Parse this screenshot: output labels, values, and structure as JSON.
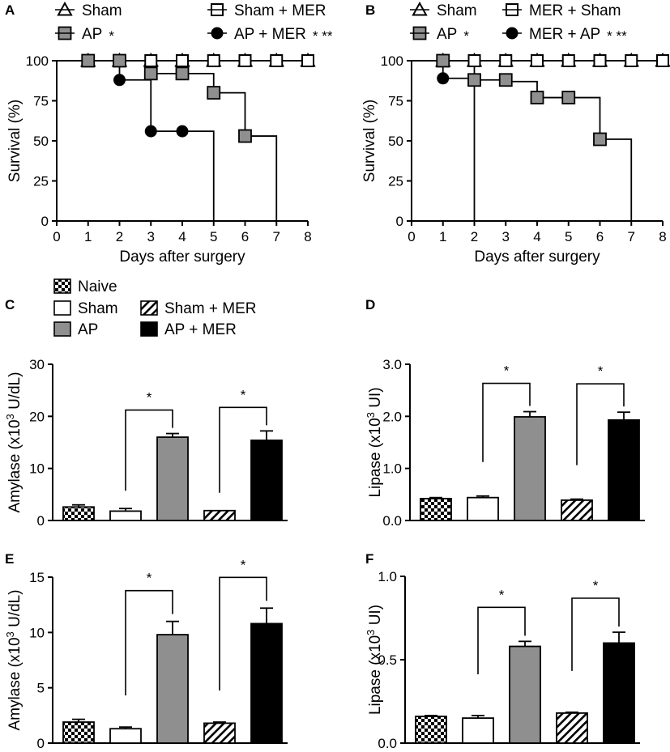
{
  "colors": {
    "ap_fill": "#8f8f8f",
    "black": "#000000",
    "white": "#ffffff"
  },
  "chart_data": [
    {
      "panel": "A",
      "type": "line",
      "step": true,
      "xlabel": "Days after surgery",
      "ylabel": "Survival (%)",
      "xlim": [
        0,
        8
      ],
      "ylim": [
        0,
        100
      ],
      "xticks": [
        0,
        1,
        2,
        3,
        4,
        5,
        6,
        7,
        8
      ],
      "yticks": [
        0,
        25,
        50,
        75,
        100
      ],
      "legend": [
        {
          "label": "Sham",
          "marker": "triangle-open",
          "sig": ""
        },
        {
          "label": "Sham + MER",
          "marker": "square-open",
          "sig": ""
        },
        {
          "label": "AP",
          "marker": "square-gray",
          "sig": "*"
        },
        {
          "label": "AP + MER",
          "marker": "circle-black",
          "sig": "* **"
        }
      ],
      "series": [
        {
          "name": "Sham",
          "marker": "triangle-open",
          "steps": [
            [
              0,
              100
            ],
            [
              8,
              100
            ]
          ],
          "markers": [
            [
              1,
              100
            ],
            [
              2,
              100
            ],
            [
              3,
              100
            ],
            [
              4,
              100
            ],
            [
              5,
              100
            ],
            [
              6,
              100
            ],
            [
              7,
              100
            ],
            [
              8,
              100
            ]
          ]
        },
        {
          "name": "Sham + MER",
          "marker": "square-open",
          "steps": [
            [
              0,
              100
            ],
            [
              8,
              100
            ]
          ],
          "markers": [
            [
              1,
              100
            ],
            [
              2,
              100
            ],
            [
              3,
              100
            ],
            [
              4,
              100
            ],
            [
              5,
              100
            ],
            [
              6,
              100
            ],
            [
              7,
              100
            ],
            [
              8,
              100
            ]
          ]
        },
        {
          "name": "AP",
          "marker": "square-gray",
          "steps": [
            [
              0,
              100
            ],
            [
              3,
              100
            ],
            [
              3,
              92
            ],
            [
              5,
              92
            ],
            [
              5,
              80
            ],
            [
              6,
              80
            ],
            [
              6,
              53
            ],
            [
              7,
              53
            ],
            [
              7,
              0
            ]
          ],
          "markers": [
            [
              1,
              100
            ],
            [
              2,
              100
            ],
            [
              3,
              92
            ],
            [
              4,
              92
            ],
            [
              5,
              80
            ],
            [
              6,
              53
            ]
          ]
        },
        {
          "name": "AP + MER",
          "marker": "circle-black",
          "steps": [
            [
              0,
              100
            ],
            [
              2,
              100
            ],
            [
              2,
              88
            ],
            [
              3,
              88
            ],
            [
              3,
              56
            ],
            [
              5,
              56
            ],
            [
              5,
              0
            ]
          ],
          "markers": [
            [
              2,
              88
            ],
            [
              3,
              56
            ],
            [
              4,
              56
            ]
          ]
        }
      ]
    },
    {
      "panel": "B",
      "type": "line",
      "step": true,
      "xlabel": "Days after surgery",
      "ylabel": "Survival (%)",
      "xlim": [
        0,
        8
      ],
      "ylim": [
        0,
        100
      ],
      "xticks": [
        0,
        1,
        2,
        3,
        4,
        5,
        6,
        7,
        8
      ],
      "yticks": [
        0,
        25,
        50,
        75,
        100
      ],
      "legend": [
        {
          "label": "Sham",
          "marker": "triangle-open",
          "sig": ""
        },
        {
          "label": "MER + Sham",
          "marker": "square-open",
          "sig": ""
        },
        {
          "label": "AP",
          "marker": "square-gray",
          "sig": "*"
        },
        {
          "label": "MER + AP",
          "marker": "circle-black",
          "sig": "* **"
        }
      ],
      "series": [
        {
          "name": "Sham",
          "marker": "triangle-open",
          "steps": [
            [
              0,
              100
            ],
            [
              8,
              100
            ]
          ],
          "markers": [
            [
              1,
              100
            ],
            [
              2,
              100
            ],
            [
              3,
              100
            ],
            [
              4,
              100
            ],
            [
              5,
              100
            ],
            [
              6,
              100
            ],
            [
              7,
              100
            ],
            [
              8,
              100
            ]
          ]
        },
        {
          "name": "MER + Sham",
          "marker": "square-open",
          "steps": [
            [
              0,
              100
            ],
            [
              8,
              100
            ]
          ],
          "markers": [
            [
              1,
              100
            ],
            [
              2,
              100
            ],
            [
              3,
              100
            ],
            [
              4,
              100
            ],
            [
              5,
              100
            ],
            [
              6,
              100
            ],
            [
              7,
              100
            ],
            [
              8,
              100
            ]
          ]
        },
        {
          "name": "AP",
          "marker": "square-gray",
          "steps": [
            [
              0,
              100
            ],
            [
              2,
              100
            ],
            [
              2,
              88
            ],
            [
              3,
              88
            ],
            [
              3,
              87
            ],
            [
              4,
              87
            ],
            [
              4,
              77
            ],
            [
              5,
              77
            ],
            [
              6,
              77
            ],
            [
              6,
              51
            ],
            [
              7,
              51
            ],
            [
              7,
              0
            ]
          ],
          "markers": [
            [
              1,
              100
            ],
            [
              2,
              88
            ],
            [
              3,
              88
            ],
            [
              4,
              77
            ],
            [
              5,
              77
            ],
            [
              6,
              51
            ]
          ]
        },
        {
          "name": "MER + AP",
          "marker": "circle-black",
          "steps": [
            [
              0,
              100
            ],
            [
              1,
              100
            ],
            [
              1,
              89
            ],
            [
              2,
              89
            ],
            [
              2,
              0
            ]
          ],
          "markers": [
            [
              1,
              89
            ]
          ]
        }
      ]
    },
    {
      "panel": "C",
      "type": "bar",
      "ylabel": "Amylase (x10³ U/dL)",
      "ylabel_parts": [
        "Amylase (x10",
        "3",
        " U/dL)"
      ],
      "ylim": [
        0,
        30
      ],
      "yticks": [
        "0",
        "10",
        "20",
        "30"
      ],
      "legend": [
        {
          "label": "Naive",
          "pattern": "checker"
        },
        {
          "label": "Sham",
          "pattern": "white"
        },
        {
          "label": "AP",
          "pattern": "gray"
        },
        {
          "label": "Sham + MER",
          "pattern": "hatch"
        },
        {
          "label": "AP + MER",
          "pattern": "black"
        }
      ],
      "bars": [
        {
          "group": "Naive",
          "value": 2.6,
          "error": 0.4
        },
        {
          "group": "Sham",
          "value": 1.8,
          "error": 0.5
        },
        {
          "group": "AP",
          "value": 16.0,
          "error": 0.7
        },
        {
          "group": "Sham + MER",
          "value": 1.9,
          "error": 0.0
        },
        {
          "group": "AP + MER",
          "value": 15.4,
          "error": 1.8
        }
      ],
      "comparisons": [
        {
          "from": "Sham",
          "to": "AP",
          "label": "*"
        },
        {
          "from": "Sham + MER",
          "to": "AP + MER",
          "label": "*"
        }
      ]
    },
    {
      "panel": "D",
      "type": "bar",
      "ylabel": "Lipase (x10³ UI)",
      "ylabel_parts": [
        "Lipase (x10",
        "3",
        " UI)"
      ],
      "ylim": [
        0,
        3.0
      ],
      "yticks": [
        "0.0",
        "1.0",
        "2.0",
        "3.0"
      ],
      "bars": [
        {
          "group": "Naive",
          "value": 0.42,
          "error": 0.02
        },
        {
          "group": "Sham",
          "value": 0.44,
          "error": 0.03
        },
        {
          "group": "AP",
          "value": 1.99,
          "error": 0.1
        },
        {
          "group": "Sham + MER",
          "value": 0.39,
          "error": 0.02
        },
        {
          "group": "AP + MER",
          "value": 1.93,
          "error": 0.15
        }
      ],
      "comparisons": [
        {
          "from": "Sham",
          "to": "AP",
          "label": "*"
        },
        {
          "from": "Sham + MER",
          "to": "AP + MER",
          "label": "*"
        }
      ]
    },
    {
      "panel": "E",
      "type": "bar",
      "ylabel": "Amylase (x10³ U/dL)",
      "ylabel_parts": [
        "Amylase (x10",
        "3",
        " U/dL)"
      ],
      "ylim": [
        0,
        15
      ],
      "yticks": [
        "0",
        "5",
        "10",
        "15"
      ],
      "bars": [
        {
          "group": "Naive",
          "value": 1.9,
          "error": 0.25
        },
        {
          "group": "Sham",
          "value": 1.3,
          "error": 0.15
        },
        {
          "group": "AP",
          "value": 9.8,
          "error": 1.2
        },
        {
          "group": "Sham + MER",
          "value": 1.8,
          "error": 0.1
        },
        {
          "group": "AP + MER",
          "value": 10.8,
          "error": 1.4
        }
      ],
      "comparisons": [
        {
          "from": "Sham",
          "to": "AP",
          "label": "*"
        },
        {
          "from": "Sham + MER",
          "to": "AP + MER",
          "label": "*"
        }
      ]
    },
    {
      "panel": "F",
      "type": "bar",
      "ylabel": "Lipase (x10³ UI)",
      "ylabel_parts": [
        "Lipase (x10",
        "3",
        " UI)"
      ],
      "ylim": [
        0,
        1.0
      ],
      "yticks": [
        "0.0",
        "0.5",
        "1.0"
      ],
      "bars": [
        {
          "group": "Naive",
          "value": 0.16,
          "error": 0.005
        },
        {
          "group": "Sham",
          "value": 0.15,
          "error": 0.015
        },
        {
          "group": "AP",
          "value": 0.58,
          "error": 0.03
        },
        {
          "group": "Sham + MER",
          "value": 0.18,
          "error": 0.005
        },
        {
          "group": "AP + MER",
          "value": 0.6,
          "error": 0.065
        }
      ],
      "comparisons": [
        {
          "from": "Sham",
          "to": "AP",
          "label": "*"
        },
        {
          "from": "Sham + MER",
          "to": "AP + MER",
          "label": "*"
        }
      ]
    }
  ]
}
